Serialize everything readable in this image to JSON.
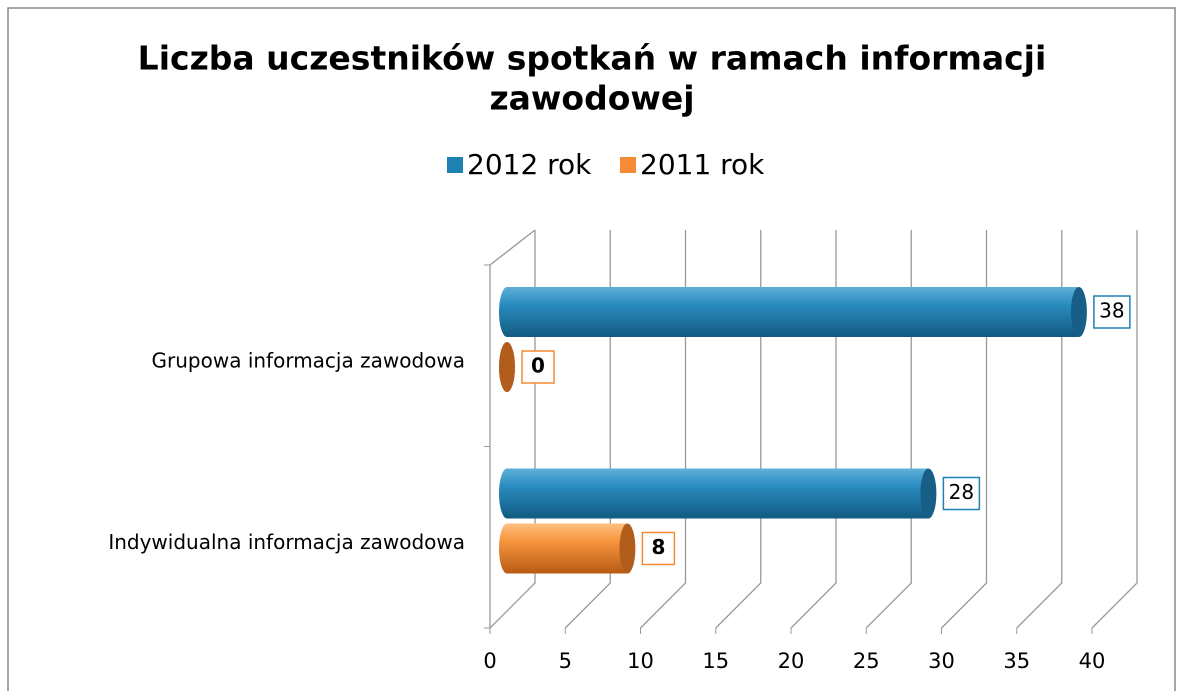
{
  "chart_data": {
    "type": "bar3d",
    "orientation": "horizontal",
    "title": "Liczba uczestników spotkań w ramach informacji zawodowej",
    "title_lines": [
      "Liczba uczestników spotkań w ramach informacji",
      "zawodowej"
    ],
    "categories": [
      "Grupowa informacja zawodowa",
      "Indywidualna informacja zawodowa"
    ],
    "series": [
      {
        "name": "2012 rok",
        "color": "#1f80b2",
        "values": [
          38,
          28
        ]
      },
      {
        "name": "2011 rok",
        "color": "#f58b34",
        "values": [
          0,
          8
        ]
      }
    ],
    "xlim": [
      0,
      40
    ],
    "xticks": [
      0,
      5,
      10,
      15,
      20,
      25,
      30,
      35,
      40
    ],
    "grid": true,
    "legend": "top"
  }
}
